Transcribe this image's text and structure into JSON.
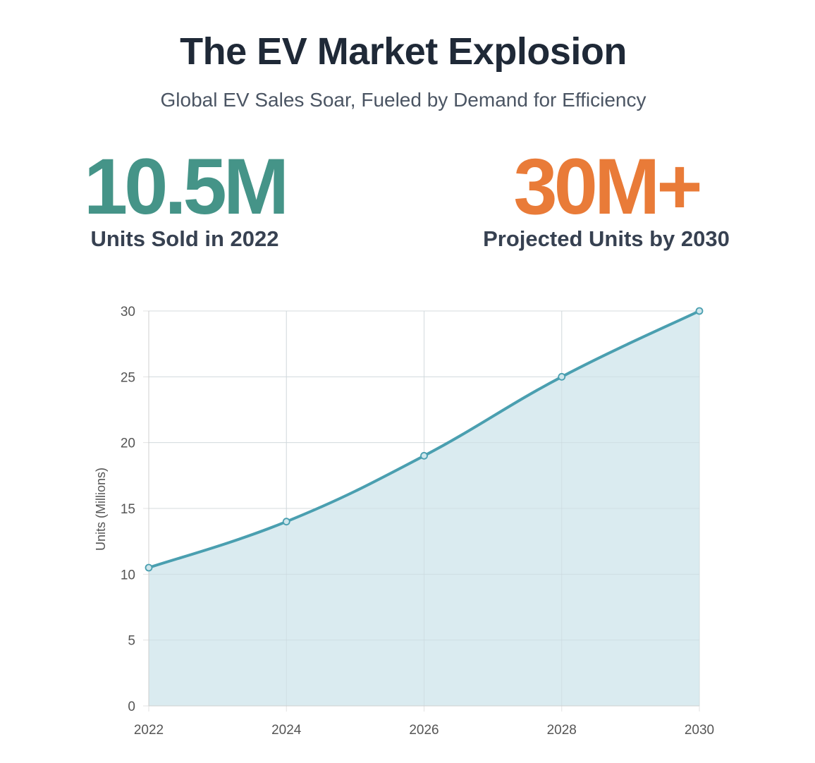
{
  "header": {
    "title": "The EV Market Explosion",
    "subtitle": "Global EV Sales Soar, Fueled by Demand for Efficiency"
  },
  "stats": {
    "left": {
      "value": "10.5M",
      "label": "Units Sold in 2022",
      "color": "#459488"
    },
    "right": {
      "value": "30M+",
      "label": "Projected Units by 2030",
      "color": "#e97b38"
    }
  },
  "chart_data": {
    "type": "area",
    "x": [
      "2022",
      "2024",
      "2026",
      "2028",
      "2030"
    ],
    "series": [
      {
        "name": "Units (Millions)",
        "values": [
          10.5,
          14,
          19,
          25,
          30
        ],
        "color": "#4a9fb0",
        "fill": "#d8eaef"
      }
    ],
    "title": "",
    "xlabel": "",
    "ylabel": "Units (Millions)",
    "ylim": [
      0,
      30
    ],
    "yticks": [
      "0",
      "5",
      "10",
      "15",
      "20",
      "25",
      "30"
    ],
    "grid": true,
    "legend": "none"
  }
}
